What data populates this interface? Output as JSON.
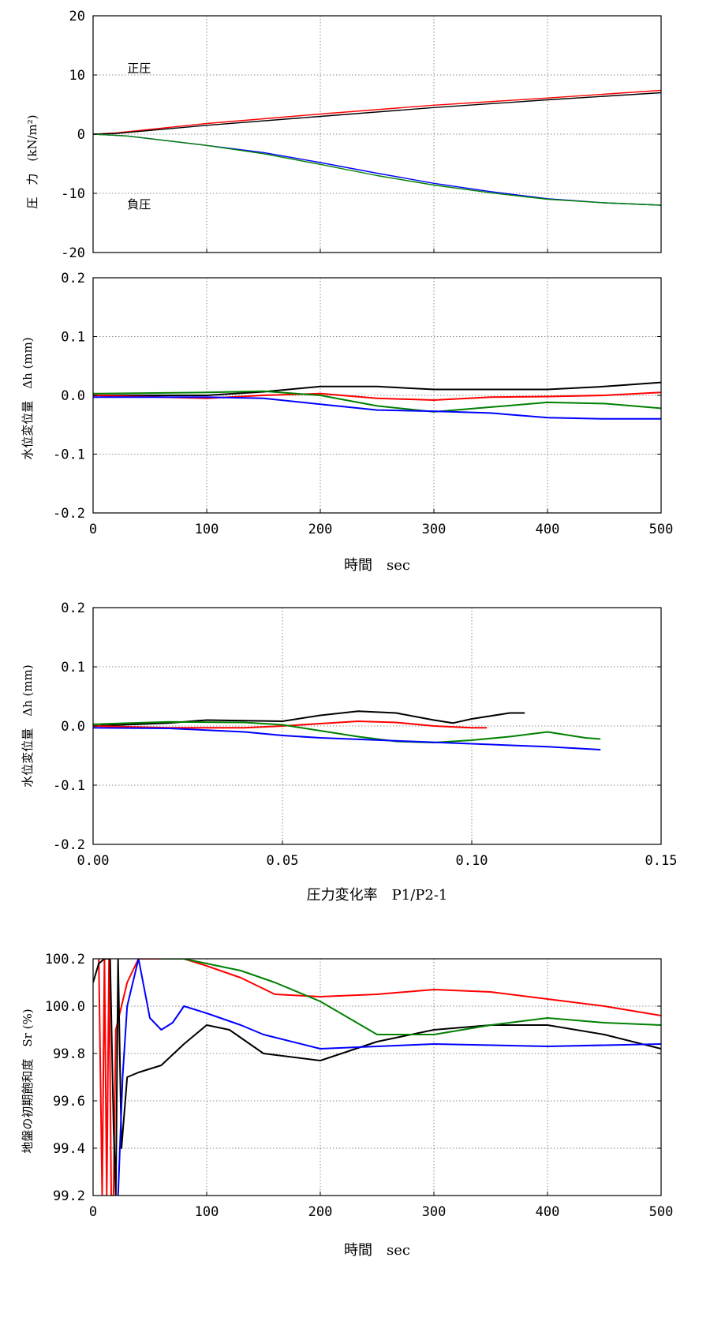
{
  "chart_data": [
    {
      "type": "line",
      "xlim": [
        0,
        500
      ],
      "ylim": [
        -20,
        20
      ],
      "xticks": [
        "0",
        "100",
        "200",
        "300",
        "400",
        "500"
      ],
      "yticks": [
        "20",
        "10",
        "0",
        "-10",
        "-20"
      ],
      "ylabel": "圧　力　(kN/m²)",
      "xlabel": "",
      "grid": true,
      "annotations": [
        {
          "text": "正圧",
          "x": 30,
          "y": 10.5
        },
        {
          "text": "負圧",
          "x": 30,
          "y": -12.5
        }
      ],
      "series": [
        {
          "color": "#ff0000",
          "x": [
            0,
            20,
            100,
            200,
            300,
            400,
            500
          ],
          "y": [
            0,
            0.2,
            1.8,
            3.4,
            4.9,
            6.1,
            7.4
          ]
        },
        {
          "color": "#000000",
          "x": [
            0,
            20,
            100,
            200,
            300,
            400,
            500
          ],
          "y": [
            0,
            0.1,
            1.5,
            3.0,
            4.5,
            5.8,
            7.0
          ]
        },
        {
          "color": "#0000ff",
          "x": [
            0,
            30,
            100,
            150,
            200,
            250,
            300,
            350,
            400,
            450,
            500
          ],
          "y": [
            0,
            -0.3,
            -1.9,
            -3.1,
            -4.8,
            -6.6,
            -8.3,
            -9.7,
            -10.9,
            -11.6,
            -12.0
          ]
        },
        {
          "color": "#008000",
          "x": [
            0,
            30,
            100,
            150,
            200,
            250,
            300,
            350,
            400,
            450,
            500
          ],
          "y": [
            0,
            -0.3,
            -1.9,
            -3.3,
            -5.1,
            -7.0,
            -8.6,
            -9.9,
            -11.0,
            -11.6,
            -12.0
          ]
        }
      ]
    },
    {
      "type": "line",
      "xlim": [
        0,
        500
      ],
      "ylim": [
        -0.2,
        0.2
      ],
      "xticks": [
        "0",
        "100",
        "200",
        "300",
        "400",
        "500"
      ],
      "yticks": [
        "0.2",
        "0.1",
        "0.0",
        "-0.1",
        "-0.2"
      ],
      "ylabel": "水位変位量　Δh (mm)",
      "xlabel": "時間　sec",
      "grid": true,
      "series": [
        {
          "color": "#000000",
          "x": [
            0,
            100,
            150,
            200,
            250,
            300,
            350,
            400,
            450,
            500
          ],
          "y": [
            0.0,
            0.0,
            0.006,
            0.015,
            0.015,
            0.01,
            0.01,
            0.01,
            0.015,
            0.022
          ]
        },
        {
          "color": "#ff0000",
          "x": [
            0,
            100,
            150,
            200,
            250,
            300,
            350,
            400,
            450,
            500
          ],
          "y": [
            0.0,
            -0.005,
            0.0,
            0.003,
            -0.005,
            -0.008,
            -0.003,
            -0.002,
            0.0,
            0.005
          ]
        },
        {
          "color": "#008000",
          "x": [
            0,
            100,
            150,
            200,
            250,
            300,
            350,
            400,
            450,
            500
          ],
          "y": [
            0.003,
            0.005,
            0.007,
            0.0,
            -0.018,
            -0.028,
            -0.02,
            -0.012,
            -0.014,
            -0.022
          ]
        },
        {
          "color": "#0000ff",
          "x": [
            0,
            100,
            150,
            200,
            250,
            300,
            350,
            400,
            450,
            500
          ],
          "y": [
            -0.003,
            -0.003,
            -0.005,
            -0.015,
            -0.025,
            -0.027,
            -0.03,
            -0.038,
            -0.04,
            -0.04
          ]
        }
      ]
    },
    {
      "type": "line",
      "xlim": [
        0,
        0.15
      ],
      "ylim": [
        -0.2,
        0.2
      ],
      "xticks": [
        "0.00",
        "0.05",
        "0.10",
        "0.15"
      ],
      "yticks": [
        "0.2",
        "0.1",
        "0.0",
        "-0.1",
        "-0.2"
      ],
      "ylabel": "水位変位量　Δh (mm)",
      "xlabel": "圧力変化率　P1/P2-1",
      "grid": true,
      "series": [
        {
          "color": "#000000",
          "x": [
            0,
            0.02,
            0.03,
            0.05,
            0.06,
            0.07,
            0.08,
            0.09,
            0.095,
            0.1,
            0.11,
            0.114
          ],
          "y": [
            0.0,
            0.005,
            0.01,
            0.008,
            0.018,
            0.025,
            0.022,
            0.01,
            0.005,
            0.012,
            0.022,
            0.022
          ]
        },
        {
          "color": "#ff0000",
          "x": [
            0,
            0.02,
            0.04,
            0.05,
            0.06,
            0.07,
            0.08,
            0.09,
            0.1,
            0.104
          ],
          "y": [
            0.0,
            -0.003,
            -0.003,
            0.0,
            0.004,
            0.008,
            0.006,
            0.0,
            -0.003,
            -0.003
          ]
        },
        {
          "color": "#008000",
          "x": [
            0,
            0.02,
            0.04,
            0.05,
            0.06,
            0.07,
            0.08,
            0.09,
            0.1,
            0.11,
            0.12,
            0.13,
            0.134
          ],
          "y": [
            0.003,
            0.007,
            0.006,
            0.002,
            -0.008,
            -0.018,
            -0.026,
            -0.028,
            -0.024,
            -0.018,
            -0.01,
            -0.02,
            -0.022
          ]
        },
        {
          "color": "#0000ff",
          "x": [
            0,
            0.02,
            0.04,
            0.05,
            0.06,
            0.08,
            0.1,
            0.12,
            0.134
          ],
          "y": [
            -0.003,
            -0.004,
            -0.01,
            -0.016,
            -0.02,
            -0.025,
            -0.03,
            -0.035,
            -0.04
          ]
        }
      ]
    },
    {
      "type": "line",
      "xlim": [
        0,
        500
      ],
      "ylim": [
        99.2,
        100.2
      ],
      "xticks": [
        "0",
        "100",
        "200",
        "300",
        "400",
        "500"
      ],
      "yticks": [
        "100.2",
        "100.0",
        "99.8",
        "99.6",
        "99.4",
        "99.2"
      ],
      "ylabel": "地盤の初期飽和度　Sr (%)",
      "xlabel": "時間　sec",
      "grid": true,
      "series": [
        {
          "color": "#ff0000",
          "x": [
            5,
            8,
            10,
            12,
            14,
            16,
            18,
            20,
            25,
            30,
            40,
            60,
            80,
            100,
            130,
            160,
            200,
            250,
            300,
            350,
            400,
            450,
            500
          ],
          "y": [
            100.2,
            99.2,
            100.2,
            99.2,
            100.2,
            99.2,
            99.2,
            99.9,
            100.0,
            100.1,
            100.2,
            100.2,
            100.2,
            100.17,
            100.12,
            100.05,
            100.04,
            100.05,
            100.07,
            100.06,
            100.03,
            100.0,
            99.96
          ]
        },
        {
          "color": "#000000",
          "x": [
            0,
            5,
            10,
            15,
            18,
            20,
            22,
            25,
            30,
            40,
            60,
            80,
            100,
            120,
            150,
            200,
            250,
            300,
            350,
            400,
            450,
            500
          ],
          "y": [
            100.1,
            100.18,
            100.2,
            100.2,
            99.5,
            99.2,
            100.2,
            99.4,
            99.7,
            99.72,
            99.75,
            99.84,
            99.92,
            99.9,
            99.8,
            99.77,
            99.85,
            99.9,
            99.92,
            99.92,
            99.88,
            99.82
          ]
        },
        {
          "color": "#0000ff",
          "x": [
            22,
            26,
            30,
            40,
            50,
            60,
            70,
            80,
            100,
            130,
            150,
            200,
            250,
            300,
            400,
            500
          ],
          "y": [
            99.2,
            99.7,
            100.0,
            100.2,
            99.95,
            99.9,
            99.93,
            100.0,
            99.97,
            99.92,
            99.88,
            99.82,
            99.83,
            99.84,
            99.83,
            99.84
          ]
        },
        {
          "color": "#008000",
          "x": [
            60,
            80,
            100,
            130,
            160,
            200,
            250,
            300,
            350,
            400,
            450,
            500
          ],
          "y": [
            100.2,
            100.2,
            100.18,
            100.15,
            100.1,
            100.02,
            99.88,
            99.88,
            99.92,
            99.95,
            99.93,
            99.92
          ]
        }
      ]
    }
  ]
}
